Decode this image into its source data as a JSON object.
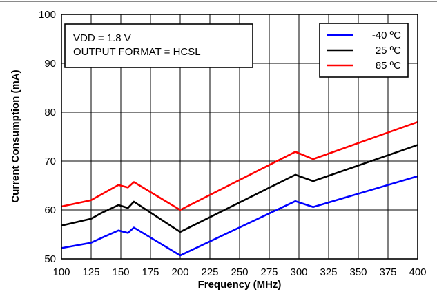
{
  "chart_data": {
    "type": "line",
    "title": "",
    "xlabel": "Frequency (MHz)",
    "ylabel": "Current Consumption (mA)",
    "xlim": [
      100,
      400
    ],
    "ylim": [
      50,
      100
    ],
    "x_ticks": [
      100,
      125,
      150,
      175,
      200,
      225,
      250,
      275,
      300,
      325,
      350,
      375,
      400
    ],
    "y_ticks": [
      50,
      60,
      70,
      80,
      90,
      100
    ],
    "grid": true,
    "annotation": [
      "VDD = 1.8 V",
      "OUTPUT FORMAT = HCSL"
    ],
    "legend_position": "top-right",
    "series": [
      {
        "name": "-40 ºC",
        "color": "#0000ff",
        "x": [
          100,
          125,
          133,
          148,
          156,
          161,
          200,
          297,
          312,
          400
        ],
        "y": [
          52.2,
          53.3,
          54.2,
          55.8,
          55.3,
          56.4,
          50.7,
          61.8,
          60.6,
          66.9
        ]
      },
      {
        "name": "25 ºC",
        "color": "#000000",
        "x": [
          100,
          125,
          133,
          148,
          156,
          161,
          200,
          297,
          312,
          400
        ],
        "y": [
          56.8,
          58.2,
          59.3,
          61.0,
          60.4,
          61.7,
          55.5,
          67.2,
          65.9,
          73.3
        ]
      },
      {
        "name": "85 ºC",
        "color": "#ff0000",
        "x": [
          100,
          125,
          148,
          156,
          161,
          200,
          297,
          312,
          400
        ],
        "y": [
          60.7,
          62.0,
          65.1,
          64.6,
          65.7,
          60.0,
          71.9,
          70.4,
          78.0
        ]
      }
    ]
  }
}
